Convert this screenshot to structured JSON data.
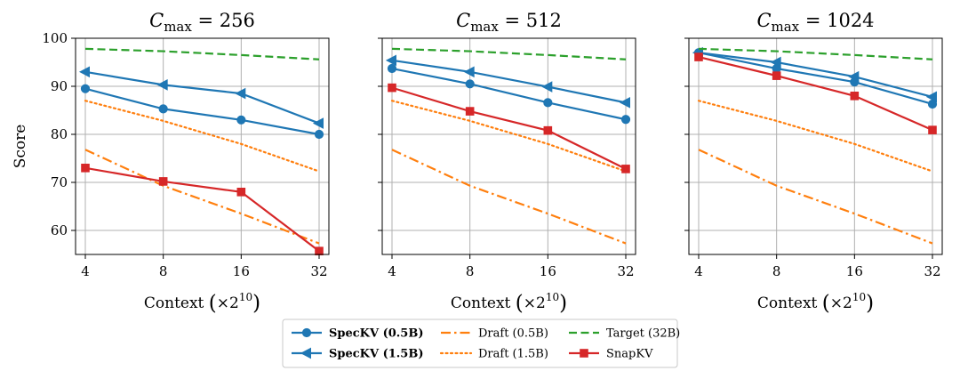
{
  "chart_data": {
    "type": "line",
    "x": [
      4,
      8,
      16,
      32
    ],
    "ylabel": "Score",
    "ylim": [
      55,
      100
    ],
    "yticks": [
      60,
      70,
      80,
      90,
      100
    ],
    "xtick_labels": [
      "4",
      "8",
      "16",
      "32"
    ],
    "xlabel": {
      "prefix": "Context ",
      "base": "×2",
      "exp": "10"
    },
    "grid": true,
    "legend_position": "bottom-center",
    "series_styles": [
      {
        "name": "SpecKV (0.5B)",
        "color": "#1f77b4",
        "dash": "solid",
        "marker": "circle",
        "bold": true
      },
      {
        "name": "SpecKV (1.5B)",
        "color": "#1f77b4",
        "dash": "solid",
        "marker": "triangle-left",
        "bold": true
      },
      {
        "name": "Draft (0.5B)",
        "color": "#ff7f0e",
        "dash": "dashdot",
        "marker": "none",
        "bold": false
      },
      {
        "name": "Draft (1.5B)",
        "color": "#ff7f0e",
        "dash": "dotted",
        "marker": "none",
        "bold": false
      },
      {
        "name": "Target (32B)",
        "color": "#2ca02c",
        "dash": "dashed",
        "marker": "none",
        "bold": false
      },
      {
        "name": "SnapKV",
        "color": "#d62728",
        "dash": "solid",
        "marker": "square",
        "bold": false
      }
    ],
    "panels": [
      {
        "title": {
          "var": "C",
          "sub": "max",
          "value": "= 256"
        },
        "series": [
          {
            "name": "SpecKV (0.5B)",
            "values": [
              89.5,
              85.3,
              83.0,
              80.0
            ]
          },
          {
            "name": "SpecKV (1.5B)",
            "values": [
              93.0,
              90.3,
              88.5,
              82.3
            ]
          },
          {
            "name": "Draft (0.5B)",
            "values": [
              76.8,
              69.3,
              63.5,
              57.3
            ]
          },
          {
            "name": "Draft (1.5B)",
            "values": [
              87.0,
              82.8,
              78.0,
              72.3
            ]
          },
          {
            "name": "Target (32B)",
            "values": [
              97.8,
              97.3,
              96.5,
              95.6
            ]
          },
          {
            "name": "SnapKV",
            "values": [
              73.0,
              70.2,
              68.0,
              55.7
            ]
          }
        ]
      },
      {
        "title": {
          "var": "C",
          "sub": "max",
          "value": "= 512"
        },
        "series": [
          {
            "name": "SpecKV (0.5B)",
            "values": [
              93.7,
              90.5,
              86.6,
              83.1
            ]
          },
          {
            "name": "SpecKV (1.5B)",
            "values": [
              95.4,
              93.0,
              89.9,
              86.6
            ]
          },
          {
            "name": "Draft (0.5B)",
            "values": [
              76.8,
              69.3,
              63.5,
              57.3
            ]
          },
          {
            "name": "Draft (1.5B)",
            "values": [
              87.0,
              82.8,
              78.0,
              72.3
            ]
          },
          {
            "name": "Target (32B)",
            "values": [
              97.8,
              97.3,
              96.5,
              95.6
            ]
          },
          {
            "name": "SnapKV",
            "values": [
              89.7,
              84.8,
              80.8,
              72.8
            ]
          }
        ]
      },
      {
        "title": {
          "var": "C",
          "sub": "max",
          "value": "= 1024"
        },
        "series": [
          {
            "name": "SpecKV (0.5B)",
            "values": [
              97.0,
              93.7,
              90.9,
              86.3
            ]
          },
          {
            "name": "SpecKV (1.5B)",
            "values": [
              97.0,
              95.0,
              92.0,
              87.8
            ]
          },
          {
            "name": "Draft (0.5B)",
            "values": [
              76.8,
              69.3,
              63.5,
              57.3
            ]
          },
          {
            "name": "Draft (1.5B)",
            "values": [
              87.0,
              82.8,
              78.0,
              72.3
            ]
          },
          {
            "name": "Target (32B)",
            "values": [
              97.8,
              97.3,
              96.5,
              95.6
            ]
          },
          {
            "name": "SnapKV",
            "values": [
              96.1,
              92.2,
              88.0,
              80.9
            ]
          }
        ]
      }
    ]
  }
}
